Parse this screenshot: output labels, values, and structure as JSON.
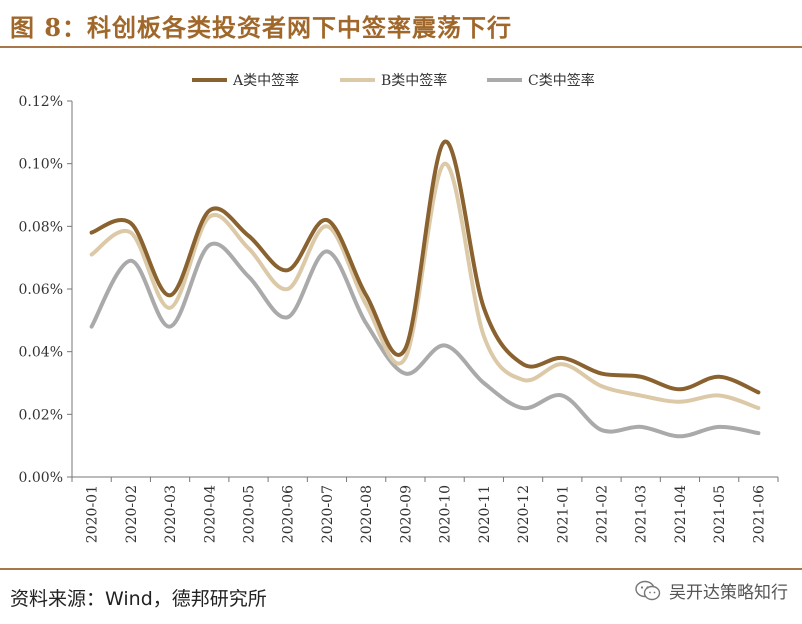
{
  "header": {
    "title": "图 8：科创板各类投资者网下中签率震荡下行"
  },
  "footer": {
    "source": "资料来源：Wind，德邦研究所",
    "watermark": "吴开达策略知行",
    "watermark_icon": "wechat-icon"
  },
  "colors": {
    "accent": "#a8774a",
    "title": "#a0672a",
    "series_a": "#8a6230",
    "series_b": "#dcc9a8",
    "series_c": "#aaaaaa"
  },
  "chart_data": {
    "type": "line",
    "title": "",
    "xlabel": "",
    "ylabel": "",
    "ylim": [
      0,
      0.12
    ],
    "yticks": [
      0,
      0.02,
      0.04,
      0.06,
      0.08,
      0.1,
      0.12
    ],
    "ytick_labels": [
      "0.00%",
      "0.02%",
      "0.04%",
      "0.06%",
      "0.08%",
      "0.10%",
      "0.12%"
    ],
    "legend_position": "top-center",
    "grid": false,
    "categories": [
      "2020-01",
      "2020-02",
      "2020-03",
      "2020-04",
      "2020-05",
      "2020-06",
      "2020-07",
      "2020-08",
      "2020-09",
      "2020-10",
      "2020-11",
      "2020-12",
      "2021-01",
      "2021-02",
      "2021-03",
      "2021-04",
      "2021-05",
      "2021-06"
    ],
    "series": [
      {
        "name": "A类中签率",
        "color": "#8a6230",
        "values": [
          0.078,
          0.081,
          0.058,
          0.085,
          0.077,
          0.066,
          0.082,
          0.058,
          0.041,
          0.107,
          0.054,
          0.036,
          0.038,
          0.033,
          0.032,
          0.028,
          0.032,
          0.027
        ]
      },
      {
        "name": "B类中签率",
        "color": "#dcc9a8",
        "values": [
          0.071,
          0.078,
          0.054,
          0.083,
          0.073,
          0.06,
          0.08,
          0.055,
          0.038,
          0.1,
          0.045,
          0.031,
          0.036,
          0.029,
          0.026,
          0.024,
          0.026,
          0.022
        ]
      },
      {
        "name": "C类中签率",
        "color": "#aaaaaa",
        "values": [
          0.048,
          0.069,
          0.048,
          0.074,
          0.064,
          0.051,
          0.072,
          0.049,
          0.033,
          0.042,
          0.03,
          0.022,
          0.026,
          0.015,
          0.016,
          0.013,
          0.016,
          0.014
        ]
      }
    ]
  }
}
